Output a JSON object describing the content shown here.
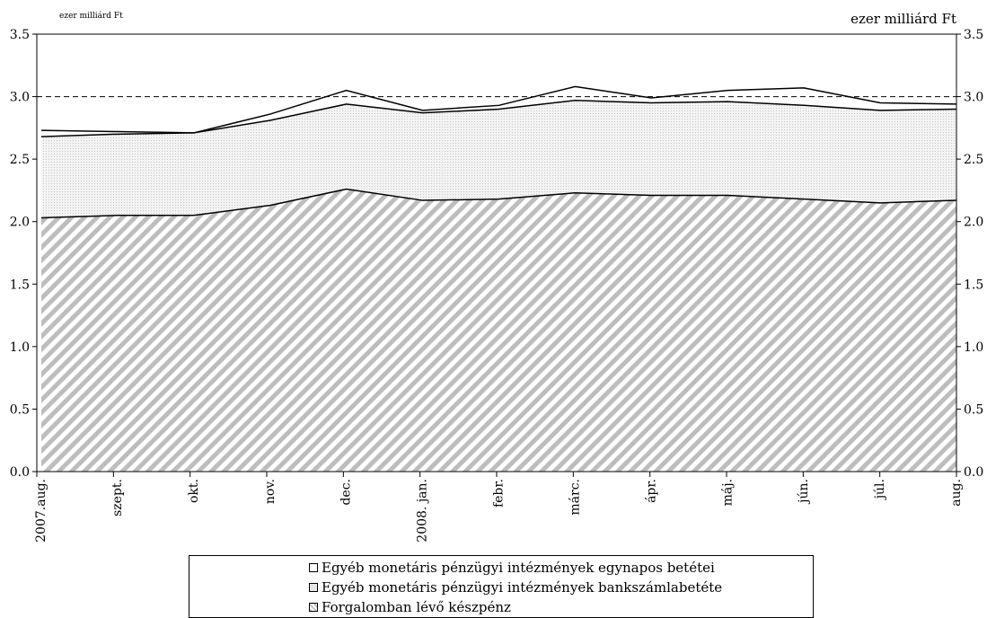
{
  "chart_data": {
    "type": "area",
    "stacked": true,
    "unit_left": "ezer milliárd Ft",
    "unit_right": "ezer milliárd Ft",
    "categories": [
      "2007.aug.",
      "szept.",
      "okt.",
      "nov.",
      "dec.",
      "2008. jan.",
      "febr.",
      "márc.",
      "ápr.",
      "máj.",
      "jún.",
      "júl.",
      "aug."
    ],
    "ylim": [
      0,
      3.5
    ],
    "yticks": [
      "0.0",
      "0.5",
      "1.0",
      "1.5",
      "2.0",
      "2.5",
      "3.0",
      "3.5"
    ],
    "reference_line": 3.0,
    "series": [
      {
        "name": "Forgalomban lévő készpénz",
        "values": [
          2.03,
          2.05,
          2.05,
          2.13,
          2.26,
          2.17,
          2.18,
          2.23,
          2.21,
          2.21,
          2.18,
          2.15,
          2.17
        ]
      },
      {
        "name": "Egyéb monetáris pénzügyi intézmények bankszámlabetéte",
        "values": [
          0.65,
          0.65,
          0.66,
          0.68,
          0.68,
          0.7,
          0.72,
          0.74,
          0.74,
          0.75,
          0.75,
          0.74,
          0.73
        ]
      },
      {
        "name": "Egyéb monetáris pénzügyi intézmények egynapos betétei",
        "values": [
          0.05,
          0.02,
          0.0,
          0.05,
          0.11,
          0.02,
          0.03,
          0.11,
          0.04,
          0.09,
          0.14,
          0.06,
          0.04
        ]
      }
    ],
    "legend": [
      "Egyéb monetáris pénzügyi intézmények egynapos betétei",
      "Egyéb monetáris pénzügyi intézmények bankszámlabetéte",
      "Forgalomban lévő készpénz"
    ],
    "legend_position": "bottom"
  }
}
